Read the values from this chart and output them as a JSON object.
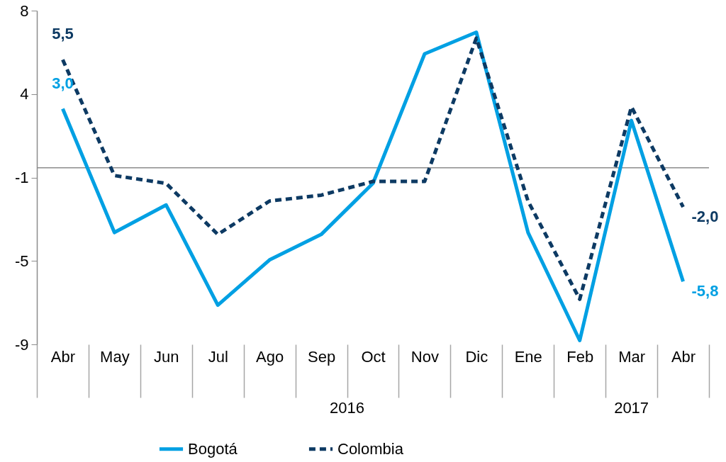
{
  "chart_data": {
    "type": "line",
    "categories": [
      "Abr",
      "May",
      "Jun",
      "Jul",
      "Ago",
      "Sep",
      "Oct",
      "Nov",
      "Dic",
      "Ene",
      "Feb",
      "Mar",
      "Abr"
    ],
    "series": [
      {
        "name": "Bogotá",
        "color": "#00a0e3",
        "line_style": "solid",
        "values": [
          3.0,
          -3.3,
          -1.9,
          -7.0,
          -4.7,
          -3.4,
          -0.8,
          5.8,
          6.9,
          -3.3,
          -8.8,
          2.4,
          -5.8
        ],
        "value_labels": [
          "3,0",
          null,
          null,
          null,
          null,
          null,
          null,
          null,
          null,
          null,
          null,
          null,
          "-5,8"
        ]
      },
      {
        "name": "Colombia",
        "color": "#0d3a63",
        "line_style": "dashed",
        "values": [
          5.5,
          -0.4,
          -0.8,
          -3.4,
          -1.7,
          -1.4,
          -0.7,
          -0.7,
          6.6,
          -1.7,
          -6.7,
          3.1,
          -2.0
        ],
        "value_labels": [
          "5,5",
          null,
          null,
          null,
          null,
          null,
          null,
          null,
          null,
          null,
          null,
          null,
          "-2,0"
        ]
      }
    ],
    "ylim": [
      -9,
      8
    ],
    "yticks": [
      {
        "value": -9,
        "label": "-9"
      },
      {
        "value": -4.75,
        "label": "-5"
      },
      {
        "value": -0.5,
        "label": "-1"
      },
      {
        "value": 3.75,
        "label": "4"
      },
      {
        "value": 8,
        "label": "8"
      }
    ],
    "annotations": [
      "2016",
      "2017"
    ],
    "grid": false,
    "legend": "bottom",
    "marker": "none"
  }
}
